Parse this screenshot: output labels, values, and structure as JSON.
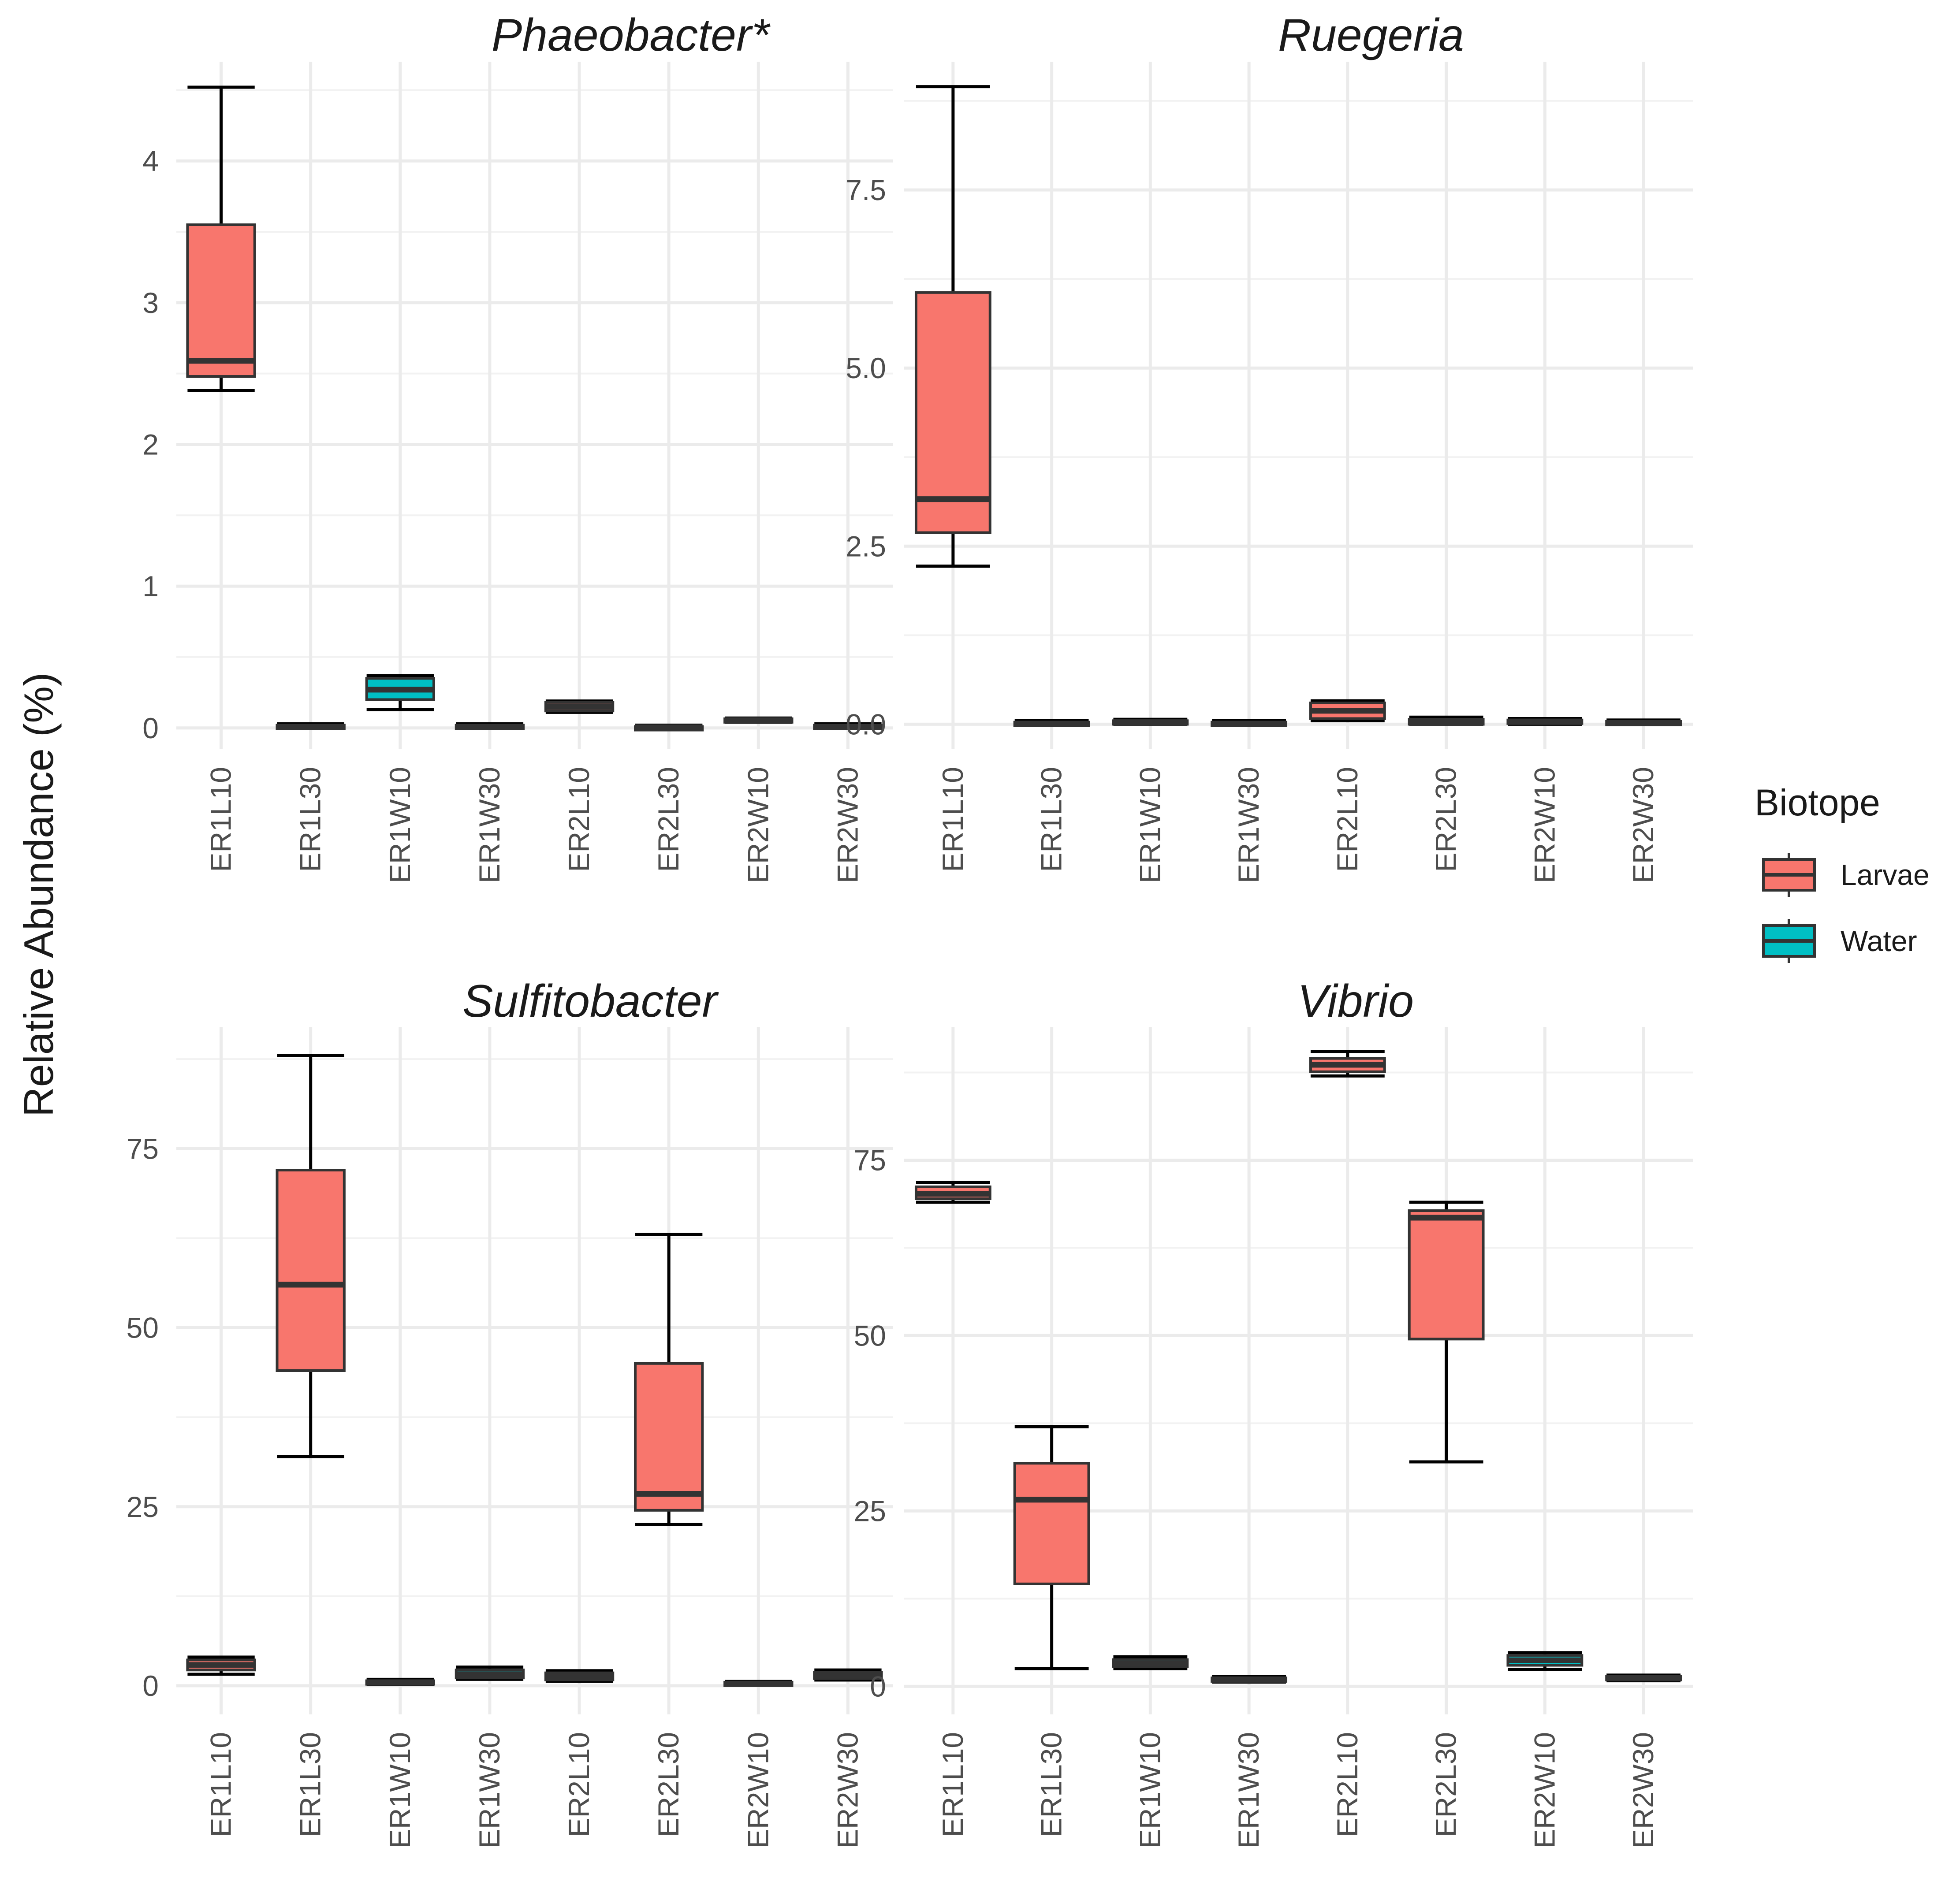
{
  "y_axis_title": "Relative Abundance (%)",
  "legend": {
    "title": "Biotope",
    "items": [
      {
        "label": "Larvae",
        "color": "#F8766D"
      },
      {
        "label": "Water",
        "color": "#00BFC4"
      }
    ]
  },
  "chart_data": [
    {
      "type": "boxplot",
      "title": "Phaeobacter*",
      "xlabel": "",
      "ylabel": "Relative Abundance (%)",
      "categories": [
        "ER1L10",
        "ER1L30",
        "ER1W10",
        "ER1W30",
        "ER2L10",
        "ER2L30",
        "ER2W10",
        "ER2W30"
      ],
      "biotope": [
        "Larvae",
        "Larvae",
        "Water",
        "Water",
        "Larvae",
        "Larvae",
        "Water",
        "Water"
      ],
      "ylim": [
        -0.15,
        4.7
      ],
      "yticks": [
        0,
        1,
        2,
        3,
        4
      ],
      "ytick_labels": [
        "0",
        "1",
        "2",
        "3",
        "4"
      ],
      "boxes": [
        {
          "min": 2.38,
          "q1": 2.48,
          "median": 2.59,
          "q3": 3.55,
          "max": 4.52
        },
        {
          "min": 0.0,
          "q1": 0.005,
          "median": 0.01,
          "q3": 0.02,
          "max": 0.03
        },
        {
          "min": 0.13,
          "q1": 0.2,
          "median": 0.27,
          "q3": 0.35,
          "max": 0.37
        },
        {
          "min": 0.0,
          "q1": 0.005,
          "median": 0.01,
          "q3": 0.02,
          "max": 0.03
        },
        {
          "min": 0.11,
          "q1": 0.12,
          "median": 0.15,
          "q3": 0.18,
          "max": 0.19
        },
        {
          "min": 0.0,
          "q1": 0.0,
          "median": 0.005,
          "q3": 0.01,
          "max": 0.02
        },
        {
          "min": 0.04,
          "q1": 0.045,
          "median": 0.055,
          "q3": 0.065,
          "max": 0.07
        },
        {
          "min": 0.0,
          "q1": 0.005,
          "median": 0.01,
          "q3": 0.02,
          "max": 0.03
        }
      ]
    },
    {
      "type": "boxplot",
      "title": "Ruegeria",
      "xlabel": "",
      "ylabel": "Relative Abundance (%)",
      "categories": [
        "ER1L10",
        "ER1L30",
        "ER1W10",
        "ER1W30",
        "ER2L10",
        "ER2L30",
        "ER2W10",
        "ER2W30"
      ],
      "biotope": [
        "Larvae",
        "Larvae",
        "Water",
        "Water",
        "Larvae",
        "Larvae",
        "Water",
        "Water"
      ],
      "ylim": [
        -0.35,
        9.3
      ],
      "yticks": [
        0,
        2.5,
        5,
        7.5
      ],
      "ytick_labels": [
        "0.0",
        "2.5",
        "5.0",
        "7.5"
      ],
      "boxes": [
        {
          "min": 2.22,
          "q1": 2.69,
          "median": 3.16,
          "q3": 6.06,
          "max": 8.95
        },
        {
          "min": 0.0,
          "q1": 0.0,
          "median": 0.01,
          "q3": 0.03,
          "max": 0.05
        },
        {
          "min": 0.0,
          "q1": 0.01,
          "median": 0.03,
          "q3": 0.05,
          "max": 0.07
        },
        {
          "min": 0.0,
          "q1": 0.0,
          "median": 0.01,
          "q3": 0.03,
          "max": 0.05
        },
        {
          "min": 0.05,
          "q1": 0.08,
          "median": 0.19,
          "q3": 0.3,
          "max": 0.33
        },
        {
          "min": 0.0,
          "q1": 0.0,
          "median": 0.03,
          "q3": 0.07,
          "max": 0.1
        },
        {
          "min": 0.0,
          "q1": 0.02,
          "median": 0.04,
          "q3": 0.06,
          "max": 0.08
        },
        {
          "min": 0.0,
          "q1": 0.0,
          "median": 0.02,
          "q3": 0.04,
          "max": 0.06
        }
      ]
    },
    {
      "type": "boxplot",
      "title": "Sulfitobacter",
      "xlabel": "",
      "ylabel": "Relative Abundance (%)",
      "categories": [
        "ER1L10",
        "ER1L30",
        "ER1W10",
        "ER1W30",
        "ER2L10",
        "ER2L30",
        "ER2W10",
        "ER2W30"
      ],
      "biotope": [
        "Larvae",
        "Larvae",
        "Water",
        "Water",
        "Larvae",
        "Larvae",
        "Water",
        "Water"
      ],
      "ylim": [
        -4,
        92
      ],
      "yticks": [
        0,
        25,
        50,
        75
      ],
      "ytick_labels": [
        "0",
        "25",
        "50",
        "75"
      ],
      "boxes": [
        {
          "min": 1.6,
          "q1": 2.2,
          "median": 2.9,
          "q3": 3.6,
          "max": 4.0
        },
        {
          "min": 32.0,
          "q1": 44.0,
          "median": 56.0,
          "q3": 72.0,
          "max": 88.0
        },
        {
          "min": 0.2,
          "q1": 0.3,
          "median": 0.5,
          "q3": 0.7,
          "max": 0.9
        },
        {
          "min": 0.9,
          "q1": 1.1,
          "median": 1.6,
          "q3": 2.2,
          "max": 2.6
        },
        {
          "min": 0.6,
          "q1": 0.8,
          "median": 1.2,
          "q3": 1.8,
          "max": 2.1
        },
        {
          "min": 22.5,
          "q1": 24.5,
          "median": 26.8,
          "q3": 45.0,
          "max": 63.0
        },
        {
          "min": 0.1,
          "q1": 0.2,
          "median": 0.3,
          "q3": 0.5,
          "max": 0.6
        },
        {
          "min": 0.8,
          "q1": 1.0,
          "median": 1.4,
          "q3": 1.9,
          "max": 2.2
        }
      ]
    },
    {
      "type": "boxplot",
      "title": "Vibrio",
      "xlabel": "",
      "ylabel": "Relative Abundance (%)",
      "categories": [
        "ER1L10",
        "ER1L30",
        "ER1W10",
        "ER1W30",
        "ER2L10",
        "ER2L30",
        "ER2W10",
        "ER2W30"
      ],
      "biotope": [
        "Larvae",
        "Larvae",
        "Water",
        "Water",
        "Larvae",
        "Larvae",
        "Water",
        "Water"
      ],
      "ylim": [
        -4,
        94
      ],
      "yticks": [
        0,
        25,
        50,
        75
      ],
      "ytick_labels": [
        "0",
        "25",
        "50",
        "75"
      ],
      "boxes": [
        {
          "min": 69.0,
          "q1": 69.5,
          "median": 70.2,
          "q3": 71.2,
          "max": 71.8
        },
        {
          "min": 2.5,
          "q1": 14.6,
          "median": 26.6,
          "q3": 31.8,
          "max": 37.0
        },
        {
          "min": 2.5,
          "q1": 2.8,
          "median": 3.2,
          "q3": 3.8,
          "max": 4.2
        },
        {
          "min": 0.6,
          "q1": 0.8,
          "median": 1.0,
          "q3": 1.2,
          "max": 1.4
        },
        {
          "min": 87.0,
          "q1": 87.6,
          "median": 88.6,
          "q3": 89.5,
          "max": 90.5
        },
        {
          "min": 32.0,
          "q1": 49.5,
          "median": 66.8,
          "q3": 67.8,
          "max": 69.0
        },
        {
          "min": 2.4,
          "q1": 3.0,
          "median": 3.7,
          "q3": 4.4,
          "max": 4.8
        },
        {
          "min": 0.8,
          "q1": 1.0,
          "median": 1.2,
          "q3": 1.4,
          "max": 1.6
        }
      ]
    }
  ]
}
